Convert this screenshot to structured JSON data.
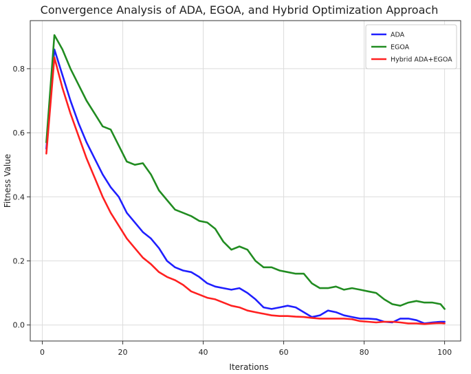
{
  "chart_data": {
    "type": "line",
    "title": "Convergence Analysis of ADA, EGOA, and Hybrid Optimization Approach",
    "xlabel": "Iterations",
    "ylabel": "Fitness Value",
    "xlim": [
      -3,
      104
    ],
    "ylim": [
      -0.05,
      0.95
    ],
    "xticks": [
      0,
      20,
      40,
      60,
      80,
      100
    ],
    "yticks": [
      0.0,
      0.2,
      0.4,
      0.6,
      0.8
    ],
    "xtick_labels": [
      "0",
      "20",
      "40",
      "60",
      "80",
      "100"
    ],
    "ytick_labels": [
      "0.0",
      "0.2",
      "0.4",
      "0.6",
      "0.8"
    ],
    "grid": true,
    "legend_position": "top-right",
    "series": [
      {
        "name": "ADA",
        "color": "#1f1fff",
        "x": [
          1,
          3,
          5,
          7,
          9,
          11,
          13,
          15,
          17,
          19,
          21,
          23,
          25,
          27,
          29,
          31,
          33,
          35,
          37,
          39,
          41,
          43,
          45,
          47,
          49,
          51,
          53,
          55,
          57,
          59,
          61,
          63,
          65,
          67,
          69,
          71,
          73,
          75,
          77,
          79,
          81,
          83,
          85,
          87,
          89,
          91,
          93,
          95,
          97,
          99,
          100
        ],
        "y": [
          0.55,
          0.86,
          0.78,
          0.7,
          0.63,
          0.57,
          0.52,
          0.47,
          0.43,
          0.4,
          0.35,
          0.32,
          0.29,
          0.27,
          0.24,
          0.2,
          0.18,
          0.17,
          0.165,
          0.15,
          0.13,
          0.12,
          0.115,
          0.11,
          0.115,
          0.1,
          0.08,
          0.055,
          0.05,
          0.055,
          0.06,
          0.055,
          0.04,
          0.025,
          0.03,
          0.045,
          0.04,
          0.03,
          0.025,
          0.02,
          0.02,
          0.018,
          0.01,
          0.008,
          0.02,
          0.02,
          0.015,
          0.005,
          0.008,
          0.01,
          0.01
        ]
      },
      {
        "name": "EGOA",
        "color": "#218c21",
        "x": [
          1,
          3,
          5,
          7,
          9,
          11,
          13,
          15,
          17,
          19,
          21,
          23,
          25,
          27,
          29,
          31,
          33,
          35,
          37,
          39,
          41,
          43,
          45,
          47,
          49,
          51,
          53,
          55,
          57,
          59,
          61,
          63,
          65,
          67,
          69,
          71,
          73,
          75,
          77,
          79,
          81,
          83,
          85,
          87,
          89,
          91,
          93,
          95,
          97,
          99,
          100
        ],
        "y": [
          0.57,
          0.905,
          0.86,
          0.8,
          0.75,
          0.7,
          0.66,
          0.62,
          0.61,
          0.56,
          0.51,
          0.5,
          0.505,
          0.47,
          0.42,
          0.39,
          0.36,
          0.35,
          0.34,
          0.325,
          0.32,
          0.3,
          0.26,
          0.235,
          0.245,
          0.235,
          0.2,
          0.18,
          0.18,
          0.17,
          0.165,
          0.16,
          0.16,
          0.13,
          0.115,
          0.115,
          0.12,
          0.11,
          0.115,
          0.11,
          0.105,
          0.1,
          0.08,
          0.065,
          0.06,
          0.07,
          0.075,
          0.07,
          0.07,
          0.065,
          0.05
        ]
      },
      {
        "name": "Hybrid ADA+EGOA",
        "color": "#ff2020",
        "x": [
          1,
          3,
          5,
          7,
          9,
          11,
          13,
          15,
          17,
          19,
          21,
          23,
          25,
          27,
          29,
          31,
          33,
          35,
          37,
          39,
          41,
          43,
          45,
          47,
          49,
          51,
          53,
          55,
          57,
          59,
          61,
          63,
          65,
          67,
          69,
          71,
          73,
          75,
          77,
          79,
          81,
          83,
          85,
          87,
          89,
          91,
          93,
          95,
          97,
          99,
          100
        ],
        "y": [
          0.535,
          0.835,
          0.74,
          0.66,
          0.59,
          0.52,
          0.46,
          0.4,
          0.35,
          0.31,
          0.27,
          0.24,
          0.21,
          0.19,
          0.165,
          0.15,
          0.14,
          0.125,
          0.105,
          0.095,
          0.085,
          0.08,
          0.07,
          0.06,
          0.055,
          0.045,
          0.04,
          0.035,
          0.03,
          0.028,
          0.028,
          0.026,
          0.025,
          0.022,
          0.02,
          0.02,
          0.02,
          0.02,
          0.018,
          0.012,
          0.01,
          0.008,
          0.01,
          0.01,
          0.008,
          0.005,
          0.005,
          0.003,
          0.005,
          0.006,
          0.005
        ]
      }
    ]
  }
}
